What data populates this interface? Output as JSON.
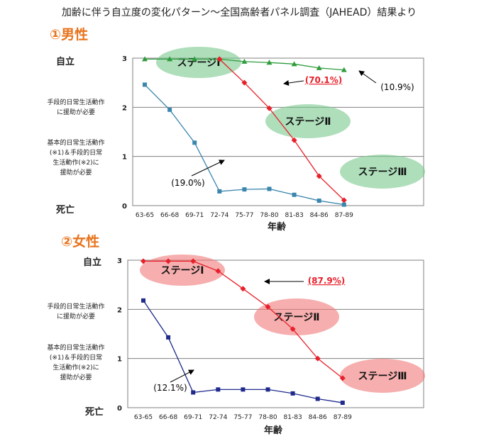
{
  "title": "加齢に伴う自立度の変化パターン～全国高齢者パネル調査（JAHEAD）結果より",
  "ylevels": [
    "自立",
    "手段的日常生活動作\nに援助が必要",
    "基本的日常生活動作\n(※1)＆手段的日常\n生活動作(※2)に\n援助が必要",
    "死亡"
  ],
  "colors": {
    "green": "#2e9c3c",
    "red": "#e8202a",
    "blue": "#3a86ad",
    "navy": "#1f2a8c",
    "title_orange": "#e8731c",
    "grid": "#808080"
  },
  "chart_data": [
    {
      "type": "line",
      "title": "①男性",
      "xlabel": "年齢",
      "categories": [
        "63-65",
        "66-68",
        "69-71",
        "72-74",
        "75-77",
        "78-80",
        "81-83",
        "84-86",
        "87-89"
      ],
      "ylim": [
        0,
        3
      ],
      "yticks": [
        "0",
        "1",
        "2",
        "3"
      ],
      "grid": true,
      "series": [
        {
          "values": [
            2.98,
            2.98,
            2.98,
            2.98,
            2.93,
            2.91,
            2.88,
            2.8,
            2.76
          ],
          "color": "green",
          "marker": "triangle"
        },
        {
          "values": [
            null,
            null,
            null,
            2.98,
            2.5,
            1.98,
            1.33,
            0.6,
            0.11
          ],
          "color": "red",
          "marker": "diamond"
        },
        {
          "values": [
            2.46,
            1.95,
            1.28,
            0.29,
            0.33,
            0.34,
            0.22,
            0.1,
            0.02
          ],
          "color": "blue",
          "marker": "square"
        }
      ],
      "annotations": [
        "(70.1%)",
        "(10.9%)",
        "(19.0%)"
      ],
      "stages": [
        "ステージⅠ",
        "ステージⅡ",
        "ステージⅢ"
      ]
    },
    {
      "type": "line",
      "title": "②女性",
      "xlabel": "年齢",
      "categories": [
        "63-65",
        "66-68",
        "69-71",
        "72-74",
        "75-77",
        "78-80",
        "81-83",
        "84-86",
        "87-89"
      ],
      "ylim": [
        0,
        3
      ],
      "yticks": [
        "0",
        "1",
        "2",
        "3"
      ],
      "grid": true,
      "series": [
        {
          "values": [
            2.98,
            2.98,
            2.98,
            2.78,
            2.42,
            2.05,
            1.6,
            1.0,
            0.6
          ],
          "color": "red",
          "marker": "diamond"
        },
        {
          "values": [
            2.18,
            1.43,
            0.31,
            0.37,
            0.37,
            0.37,
            0.29,
            0.18,
            0.1
          ],
          "color": "navy",
          "marker": "square"
        }
      ],
      "annotations": [
        "(87.9%)",
        "(12.1%)"
      ],
      "stages": [
        "ステージⅠ",
        "ステージⅡ",
        "ステージⅢ"
      ]
    }
  ]
}
